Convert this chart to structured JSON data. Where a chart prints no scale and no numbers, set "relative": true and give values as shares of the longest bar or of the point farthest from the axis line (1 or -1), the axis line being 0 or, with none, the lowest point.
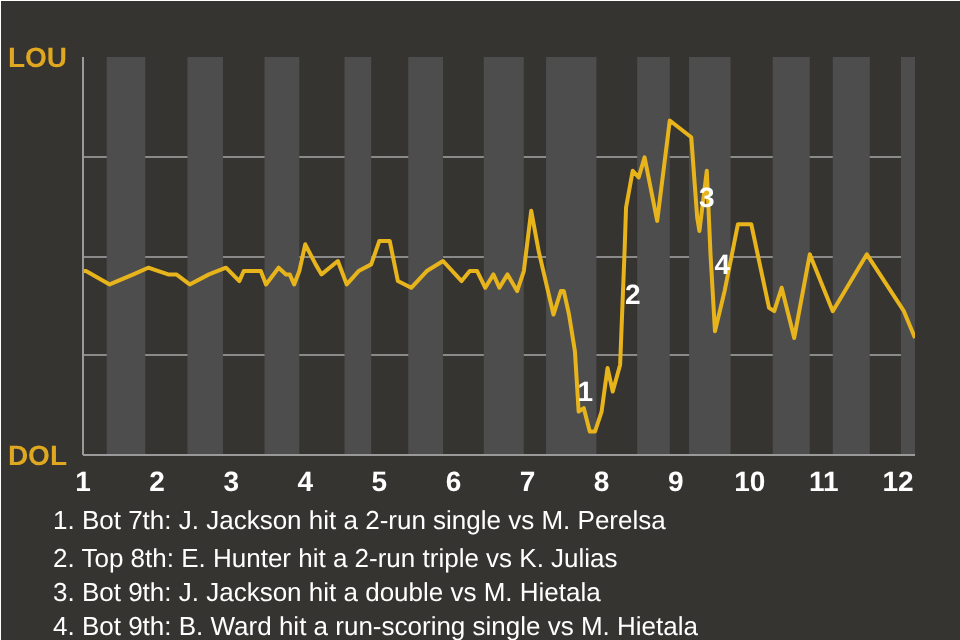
{
  "chart_data": {
    "type": "line",
    "color": "#e8b41c",
    "relative": true,
    "x": [
      1.0,
      1.04,
      1.36,
      1.68,
      1.88,
      2.15,
      2.26,
      2.44,
      2.7,
      2.93,
      3.11,
      3.17,
      3.4,
      3.47,
      3.64,
      3.74,
      3.79,
      3.85,
      3.92,
      4.0,
      4.14,
      4.22,
      4.44,
      4.56,
      4.72,
      4.89,
      5.0,
      5.14,
      5.25,
      5.43,
      5.64,
      5.86,
      6.11,
      6.22,
      6.32,
      6.43,
      6.54,
      6.62,
      6.73,
      6.86,
      6.95,
      7.05,
      7.15,
      7.35,
      7.45,
      7.49,
      7.56,
      7.64,
      7.69,
      7.76,
      7.84,
      7.91,
      8.0,
      8.08,
      8.15,
      8.25,
      8.31,
      8.33,
      8.42,
      8.5,
      8.58,
      8.75,
      8.92,
      9.21,
      9.29,
      9.32,
      9.42,
      9.47,
      9.53,
      9.66,
      9.84,
      10.02,
      10.26,
      10.33,
      10.43,
      10.6,
      10.81,
      11.12,
      11.58,
      12.08,
      12.23
    ],
    "values": [
      0.55,
      0.55,
      0.51,
      0.54,
      0.56,
      0.54,
      0.54,
      0.51,
      0.54,
      0.56,
      0.52,
      0.55,
      0.55,
      0.51,
      0.56,
      0.54,
      0.54,
      0.51,
      0.55,
      0.63,
      0.57,
      0.54,
      0.58,
      0.51,
      0.55,
      0.57,
      0.64,
      0.64,
      0.52,
      0.5,
      0.55,
      0.58,
      0.52,
      0.55,
      0.55,
      0.5,
      0.54,
      0.5,
      0.54,
      0.49,
      0.55,
      0.73,
      0.61,
      0.42,
      0.49,
      0.49,
      0.42,
      0.31,
      0.13,
      0.14,
      0.07,
      0.07,
      0.13,
      0.26,
      0.19,
      0.27,
      0.61,
      0.74,
      0.85,
      0.83,
      0.89,
      0.7,
      1,
      0.95,
      0.71,
      0.67,
      0.85,
      0.6,
      0.37,
      0.49,
      0.69,
      0.69,
      0.44,
      0.43,
      0.5,
      0.35,
      0.6,
      0.43,
      0.6,
      0.43,
      0.35
    ],
    "xlim": [
      1,
      12.23
    ],
    "xticks": [
      1,
      2,
      3,
      4,
      5,
      6,
      7,
      8,
      9,
      10,
      11,
      12
    ],
    "grid": "y",
    "marker": "none",
    "line_style": "solid",
    "bands": [
      {
        "axis": "x",
        "from": 1.32,
        "to": 1.84,
        "color": "#4d4d4d"
      },
      {
        "axis": "x",
        "from": 2.41,
        "to": 2.89,
        "color": "#4d4d4d"
      },
      {
        "axis": "x",
        "from": 3.45,
        "to": 3.92,
        "color": "#4d4d4d"
      },
      {
        "axis": "x",
        "from": 4.53,
        "to": 4.89,
        "color": "#4d4d4d"
      },
      {
        "axis": "x",
        "from": 5.39,
        "to": 5.86,
        "color": "#4d4d4d"
      },
      {
        "axis": "x",
        "from": 6.41,
        "to": 6.95,
        "color": "#4d4d4d"
      },
      {
        "axis": "x",
        "from": 7.25,
        "to": 7.93,
        "color": "#4d4d4d"
      },
      {
        "axis": "x",
        "from": 8.48,
        "to": 8.92,
        "color": "#4d4d4d"
      },
      {
        "axis": "x",
        "from": 9.18,
        "to": 9.74,
        "color": "#4d4d4d"
      },
      {
        "axis": "x",
        "from": 10.31,
        "to": 10.81,
        "color": "#4d4d4d"
      },
      {
        "axis": "x",
        "from": 11.12,
        "to": 11.62,
        "color": "#4d4d4d"
      },
      {
        "axis": "x",
        "from": 12.04,
        "to": 12.23,
        "color": "#4d4d4d"
      }
    ],
    "annotations": [
      "LOU",
      "DOL",
      {
        "text": "1",
        "x": 7.78,
        "y": 0.19
      },
      {
        "text": "2",
        "x": 8.42,
        "y": 0.48
      },
      {
        "text": "3",
        "x": 9.42,
        "y": 0.77
      },
      {
        "text": "4",
        "x": 9.63,
        "y": 0.57
      },
      "1. Bot 7th: J. Jackson hit a 2-run single vs M. Perelsa",
      "2. Top 8th: E. Hunter hit a 2-run triple vs K. Julias",
      "3. Bot 9th: J. Jackson hit a double vs M. Hietala",
      "4. Bot 9th: B. Ward hit a run-scoring single vs M. Hietala"
    ]
  }
}
